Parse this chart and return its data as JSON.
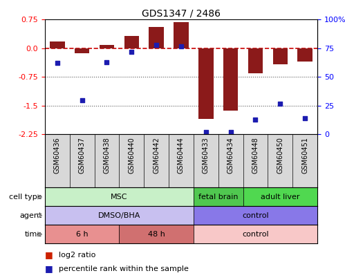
{
  "title": "GDS1347 / 2486",
  "samples": [
    "GSM60436",
    "GSM60437",
    "GSM60438",
    "GSM60440",
    "GSM60442",
    "GSM60444",
    "GSM60433",
    "GSM60434",
    "GSM60448",
    "GSM60450",
    "GSM60451"
  ],
  "log2_ratio": [
    0.18,
    -0.12,
    0.08,
    0.32,
    0.55,
    0.68,
    -1.85,
    -1.62,
    -0.65,
    -0.42,
    -0.35
  ],
  "percentile_rank": [
    62,
    30,
    63,
    72,
    78,
    77,
    2,
    2,
    13,
    27,
    14
  ],
  "bar_color": "#8B1A1A",
  "dot_color": "#1C1CB0",
  "zero_line_color": "#CC0000",
  "dotted_line_color": "#555555",
  "ylim_left": [
    -2.25,
    0.75
  ],
  "ylim_right": [
    0,
    100
  ],
  "left_yticks": [
    0.75,
    0.0,
    -0.75,
    -1.5,
    -2.25
  ],
  "right_yticks": [
    100,
    75,
    50,
    25,
    0
  ],
  "cell_type_groups": [
    {
      "label": "MSC",
      "start": 0,
      "end": 5,
      "color": "#C8F0C8",
      "text_color": "#000000"
    },
    {
      "label": "fetal brain",
      "start": 6,
      "end": 7,
      "color": "#50C850",
      "text_color": "#000000"
    },
    {
      "label": "adult liver",
      "start": 8,
      "end": 10,
      "color": "#50D850",
      "text_color": "#000000"
    }
  ],
  "agent_groups": [
    {
      "label": "DMSO/BHA",
      "start": 0,
      "end": 5,
      "color": "#C8C0F0",
      "text_color": "#000000"
    },
    {
      "label": "control",
      "start": 6,
      "end": 10,
      "color": "#8878E8",
      "text_color": "#000000"
    }
  ],
  "time_groups": [
    {
      "label": "6 h",
      "start": 0,
      "end": 2,
      "color": "#E89090",
      "text_color": "#000000"
    },
    {
      "label": "48 h",
      "start": 3,
      "end": 5,
      "color": "#D07070",
      "text_color": "#000000"
    },
    {
      "label": "control",
      "start": 6,
      "end": 10,
      "color": "#F8C8C8",
      "text_color": "#000000"
    }
  ],
  "legend_items": [
    {
      "color": "#CC2200",
      "label": "log2 ratio"
    },
    {
      "color": "#1C1CB0",
      "label": "percentile rank within the sample"
    }
  ],
  "xlabel_bg": "#D8D8D8"
}
